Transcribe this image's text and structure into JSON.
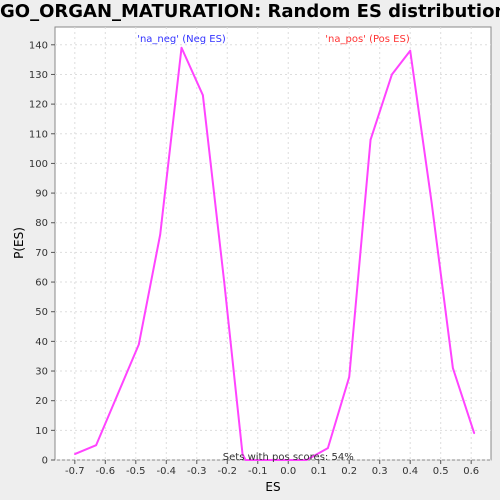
{
  "chart_data": {
    "type": "line",
    "title": "GO_ORGAN_MATURATION: Random ES distribution",
    "xlabel": "ES",
    "ylabel": "P(ES)",
    "xlim": [
      -0.765,
      0.665
    ],
    "ylim": [
      0,
      146
    ],
    "x_ticks": [
      -0.7,
      -0.6,
      -0.5,
      -0.4,
      -0.3,
      -0.2,
      -0.1,
      0.0,
      0.1,
      0.2,
      0.3,
      0.4,
      0.5,
      0.6
    ],
    "x_tick_labels": [
      "-0.7",
      "-0.6",
      "-0.5",
      "-0.4",
      "-0.3",
      "-0.2",
      "-0.1",
      "0.0",
      "0.1",
      "0.2",
      "0.3",
      "0.4",
      "0.5",
      "0.6"
    ],
    "y_ticks": [
      0,
      10,
      20,
      30,
      40,
      50,
      60,
      70,
      80,
      90,
      100,
      110,
      120,
      130,
      140
    ],
    "grid": true,
    "series": [
      {
        "color": "#ff44ff",
        "points": [
          [
            -0.7,
            2
          ],
          [
            -0.63,
            5
          ],
          [
            -0.56,
            22
          ],
          [
            -0.49,
            39
          ],
          [
            -0.42,
            76
          ],
          [
            -0.35,
            139
          ],
          [
            -0.28,
            123
          ],
          [
            -0.21,
            60
          ],
          [
            -0.15,
            2
          ],
          [
            -0.14,
            0
          ],
          [
            -0.07,
            0
          ],
          [
            0.0,
            0
          ],
          [
            0.06,
            0
          ],
          [
            0.13,
            4
          ],
          [
            0.2,
            28
          ],
          [
            0.27,
            108
          ],
          [
            0.34,
            130
          ],
          [
            0.4,
            138
          ],
          [
            0.47,
            87
          ],
          [
            0.54,
            31
          ],
          [
            0.61,
            9
          ]
        ]
      }
    ],
    "annotations": [
      {
        "text": "'na_neg' (Neg ES)",
        "x": -0.35,
        "y": 142,
        "color": "#3333ff"
      },
      {
        "text": "'na_pos' (Pos ES)",
        "x": 0.26,
        "y": 142,
        "color": "#ff3333"
      },
      {
        "text": "Sets with pos scores: 54%",
        "x": 0.0,
        "y": 1,
        "color": "#333333"
      }
    ]
  }
}
